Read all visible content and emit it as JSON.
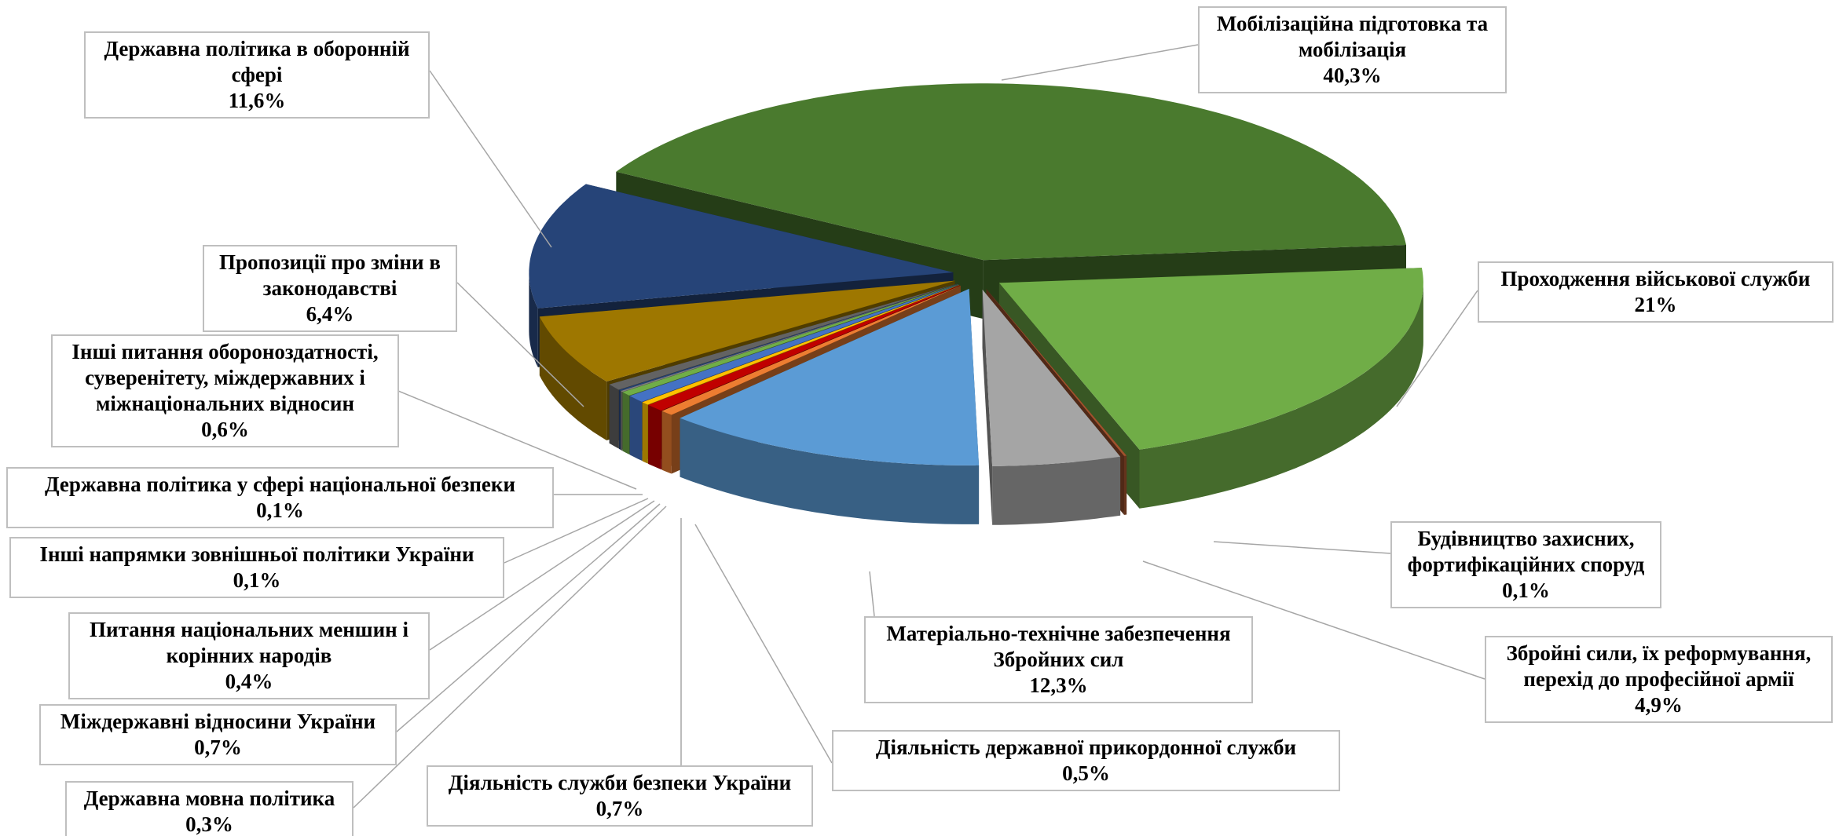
{
  "chart_data": {
    "type": "pie",
    "categories": [
      "Мобілізаційна підготовка та мобілізація",
      "Проходження військової служби",
      "Будівництво захисних, фортифікаційних споруд",
      "Збройні сили, їх реформування, перехід до професійної армії",
      "Матеріально-технічне забезпечення Збройних сил",
      "Діяльність державної прикордонної служби",
      "Діяльність служби безпеки України",
      "Державна мовна політика",
      "Міждержавні відносини України",
      "Питання національних меншин і корінних народів",
      "Інші напрямки зовнішньої політики України",
      "Державна політика у сфері національної безпеки",
      "Інші питання обороноздатності, суверенітету, міждержавних і міжнаціональних відносин",
      "Пропозиції про зміни в законодавстві",
      "Державна політика в оборонній сфері"
    ],
    "values": [
      40.3,
      21,
      0.1,
      4.9,
      12.3,
      0.5,
      0.7,
      0.3,
      0.7,
      0.4,
      0.1,
      0.1,
      0.6,
      6.4,
      11.6
    ],
    "value_labels": [
      "40,3%",
      "21%",
      "0,1%",
      "4,9%",
      "12,3%",
      "0,5%",
      "0,7%",
      "0,3%",
      "0,7%",
      "0,4%",
      "0,1%",
      "0,1%",
      "0,6%",
      "6,4%",
      "11,6%"
    ],
    "colors": [
      "#4a7a2e",
      "#70ad47",
      "#a0522d",
      "#a5a5a5",
      "#5b9bd5",
      "#ed7d31",
      "#c00000",
      "#ffc000",
      "#4472c4",
      "#70ad47",
      "#7f7f7f",
      "#264478",
      "#636363",
      "#9e7700",
      "#264478"
    ]
  }
}
